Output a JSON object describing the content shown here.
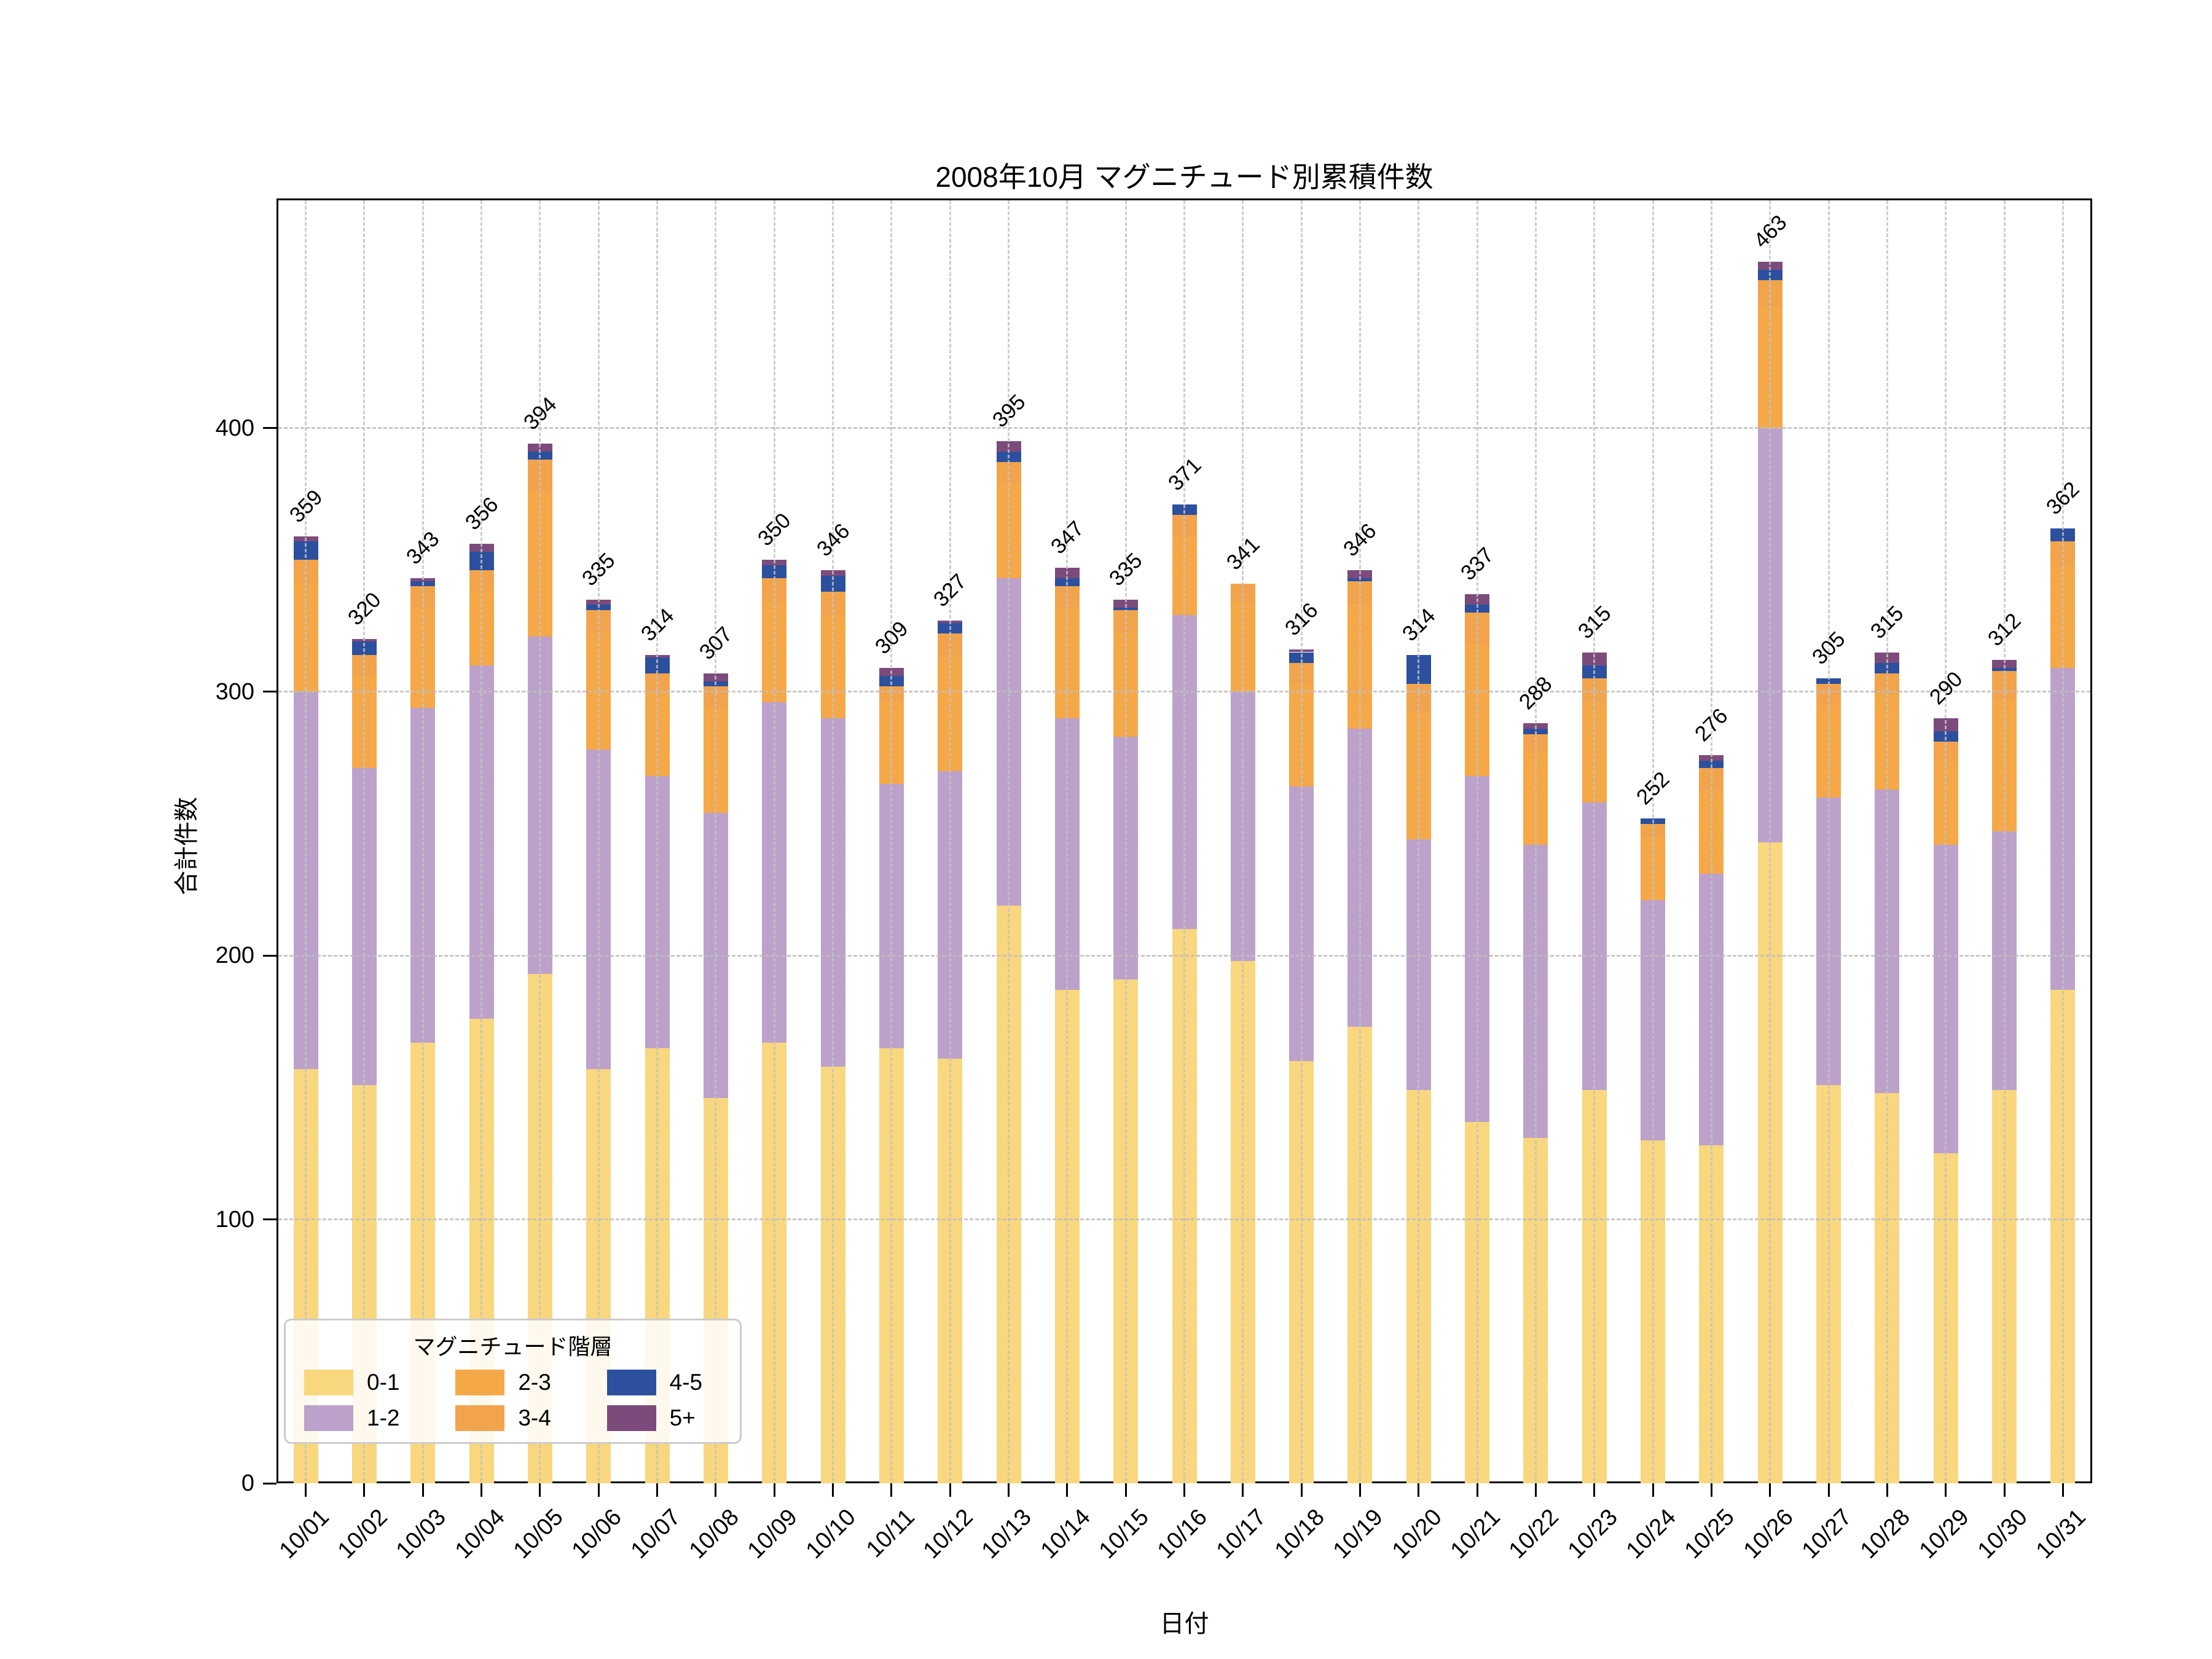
{
  "chart_data": {
    "type": "bar",
    "stacked": true,
    "title": "2008年10月 マグニチュード別累積件数",
    "xlabel": "日付",
    "ylabel": "合計件数",
    "legend_title": "マグニチュード階層",
    "legend_position": "lower left",
    "grid": "dashed-both-axes-above-bars",
    "ylim": [
      0,
      487
    ],
    "yticks": [
      0,
      100,
      200,
      300,
      400
    ],
    "ytick_labels": [
      "0",
      "100",
      "200",
      "300",
      "400"
    ],
    "categories": [
      "10/01",
      "10/02",
      "10/03",
      "10/04",
      "10/05",
      "10/06",
      "10/07",
      "10/08",
      "10/09",
      "10/10",
      "10/11",
      "10/12",
      "10/13",
      "10/14",
      "10/15",
      "10/16",
      "10/17",
      "10/18",
      "10/19",
      "10/20",
      "10/21",
      "10/22",
      "10/23",
      "10/24",
      "10/25",
      "10/26",
      "10/27",
      "10/28",
      "10/29",
      "10/30",
      "10/31"
    ],
    "series": [
      {
        "name": "0-1",
        "color": "#F9D77E",
        "values": [
          157,
          151,
          167,
          176,
          193,
          157,
          165,
          146,
          167,
          158,
          165,
          161,
          219,
          187,
          191,
          210,
          198,
          160,
          173,
          149,
          137,
          131,
          149,
          130,
          128,
          243,
          151,
          148,
          125,
          149,
          187
        ]
      },
      {
        "name": "1-2",
        "color": "#BCA2CA",
        "values": [
          143,
          120,
          127,
          134,
          128,
          121,
          103,
          108,
          129,
          132,
          100,
          109,
          124,
          103,
          92,
          119,
          102,
          104,
          113,
          95,
          131,
          111,
          109,
          91,
          103,
          157,
          109,
          115,
          117,
          98,
          122
        ]
      },
      {
        "name": "2-3",
        "color": "#F5A848",
        "values": [
          41,
          35,
          38,
          28,
          55,
          44,
          32,
          40,
          38,
          39,
          31,
          43,
          36,
          42,
          39,
          30,
          34,
          39,
          47,
          48,
          50,
          35,
          38,
          24,
          32,
          46,
          35,
          36,
          32,
          50,
          39
        ]
      },
      {
        "name": "3-4",
        "color": "#F2A44C",
        "values": [
          9,
          8,
          8,
          8,
          12,
          9,
          7,
          8,
          9,
          9,
          6,
          9,
          8,
          8,
          9,
          8,
          7,
          8,
          9,
          11,
          12,
          7,
          9,
          5,
          8,
          10,
          8,
          8,
          7,
          11,
          9
        ]
      },
      {
        "name": "4-5",
        "color": "#2C509E",
        "values": [
          7,
          5,
          2,
          7,
          3,
          2,
          6,
          2,
          5,
          6,
          4,
          4,
          4,
          3,
          1,
          4,
          0,
          4,
          1,
          11,
          3,
          2,
          5,
          2,
          3,
          4,
          2,
          4,
          4,
          1,
          5
        ]
      },
      {
        "name": "5+",
        "color": "#7C4B7C",
        "values": [
          2,
          1,
          1,
          3,
          3,
          2,
          1,
          3,
          2,
          2,
          3,
          1,
          4,
          4,
          3,
          0,
          0,
          1,
          3,
          0,
          4,
          2,
          5,
          0,
          2,
          3,
          0,
          4,
          5,
          3,
          0
        ]
      }
    ],
    "totals": [
      359,
      320,
      343,
      356,
      394,
      335,
      314,
      307,
      350,
      346,
      309,
      327,
      395,
      347,
      335,
      371,
      341,
      316,
      346,
      314,
      337,
      288,
      315,
      252,
      276,
      463,
      305,
      315,
      290,
      312,
      362
    ],
    "colors": {
      "grid": "#c3c3c3",
      "spine": "#000000",
      "text": "#000000",
      "legend_border": "#cccccc"
    }
  }
}
